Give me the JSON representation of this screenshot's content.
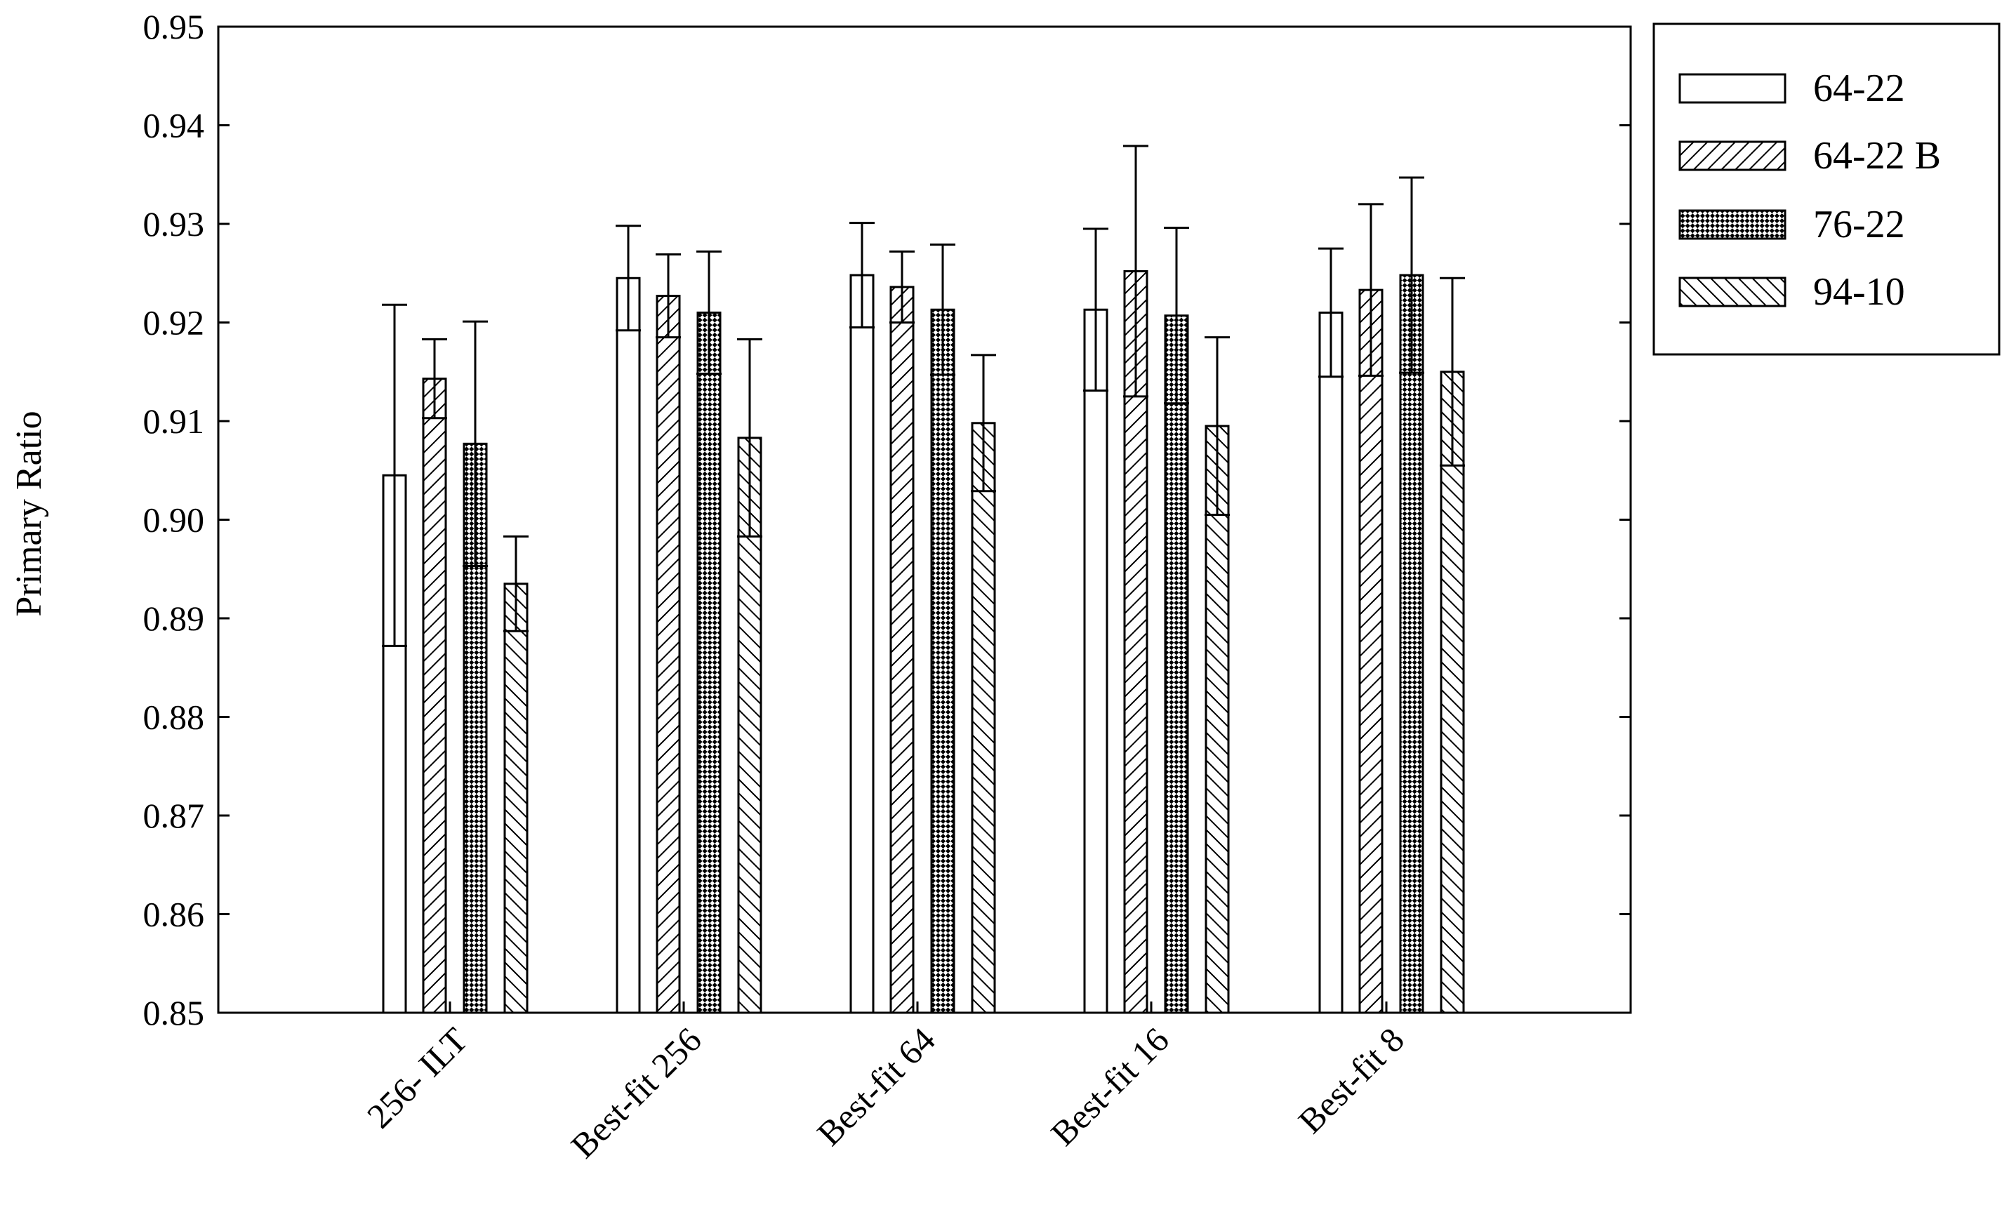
{
  "chart_data": {
    "type": "bar",
    "title": "",
    "xlabel": "",
    "ylabel": "Primary Ratio",
    "ylim": [
      0.85,
      0.95
    ],
    "yticks": [
      "0.85",
      "0.86",
      "0.87",
      "0.88",
      "0.89",
      "0.90",
      "0.91",
      "0.92",
      "0.93",
      "0.94",
      "0.95"
    ],
    "categories": [
      "256- ILT",
      "Best-fit 256",
      "Best-fit 64",
      "Best-fit 16",
      "Best-fit 8"
    ],
    "series": [
      {
        "name": "64-22",
        "pattern": "none",
        "values": [
          0.9045,
          0.9245,
          0.9248,
          0.9213,
          0.921
        ],
        "errors": [
          0.0173,
          0.0053,
          0.0053,
          0.0082,
          0.0065
        ]
      },
      {
        "name": "64-22 B",
        "pattern": "diagonal",
        "values": [
          0.9143,
          0.9227,
          0.9236,
          0.9252,
          0.9233
        ],
        "errors": [
          0.004,
          0.0042,
          0.0036,
          0.0127,
          0.0087
        ]
      },
      {
        "name": "76-22",
        "pattern": "crosshatch",
        "values": [
          0.9077,
          0.921,
          0.9213,
          0.9207,
          0.9248
        ],
        "errors": [
          0.0124,
          0.0062,
          0.0066,
          0.0089,
          0.0099
        ]
      },
      {
        "name": "94-10",
        "pattern": "backdiagonal",
        "values": [
          0.8935,
          0.9083,
          0.9098,
          0.9095,
          0.915
        ],
        "errors": [
          0.0048,
          0.01,
          0.0069,
          0.009,
          0.0095
        ]
      }
    ],
    "grid": false,
    "legend": "right"
  }
}
